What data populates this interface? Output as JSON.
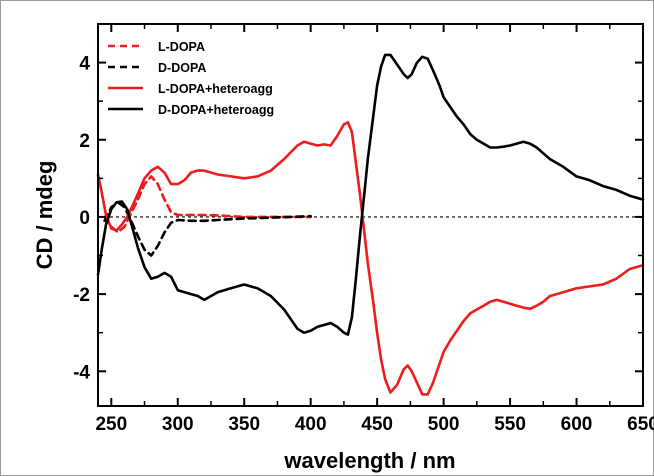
{
  "chart_data": {
    "type": "line",
    "xlabel": "wavelength / nm",
    "ylabel": "CD / mdeg",
    "xlim": [
      240,
      650
    ],
    "ylim": [
      -4.9,
      5.0
    ],
    "xticks": [
      250,
      300,
      350,
      400,
      450,
      500,
      550,
      600,
      650
    ],
    "yticks": [
      -4,
      -2,
      0,
      2,
      4
    ],
    "legend_position": "top-left",
    "zero_reference_line": true,
    "series": [
      {
        "name": "L-DOPA",
        "color": "#ee1c1c",
        "dashed": true,
        "points": [
          [
            245,
            0.0
          ],
          [
            250,
            -0.25
          ],
          [
            255,
            -0.4
          ],
          [
            260,
            -0.25
          ],
          [
            265,
            0.1
          ],
          [
            270,
            0.45
          ],
          [
            275,
            0.85
          ],
          [
            280,
            1.05
          ],
          [
            285,
            0.85
          ],
          [
            290,
            0.45
          ],
          [
            295,
            0.12
          ],
          [
            300,
            0.05
          ],
          [
            310,
            0.05
          ],
          [
            320,
            0.05
          ],
          [
            330,
            0.04
          ],
          [
            340,
            0.02
          ],
          [
            350,
            0.0
          ],
          [
            370,
            0.0
          ],
          [
            400,
            0.0
          ]
        ]
      },
      {
        "name": "D-DOPA",
        "color": "#000000",
        "dashed": true,
        "points": [
          [
            245,
            -0.1
          ],
          [
            250,
            0.25
          ],
          [
            255,
            0.38
          ],
          [
            260,
            0.25
          ],
          [
            265,
            -0.1
          ],
          [
            270,
            -0.5
          ],
          [
            275,
            -0.85
          ],
          [
            280,
            -1.0
          ],
          [
            285,
            -0.75
          ],
          [
            290,
            -0.4
          ],
          [
            295,
            -0.15
          ],
          [
            300,
            -0.08
          ],
          [
            310,
            -0.1
          ],
          [
            320,
            -0.1
          ],
          [
            330,
            -0.08
          ],
          [
            340,
            -0.06
          ],
          [
            350,
            -0.04
          ],
          [
            370,
            -0.02
          ],
          [
            385,
            0.0
          ],
          [
            400,
            0.02
          ]
        ]
      },
      {
        "name": "L-DOPA+heteroagg",
        "color": "#ee1c1c",
        "dashed": false,
        "points": [
          [
            240,
            1.1
          ],
          [
            243,
            0.6
          ],
          [
            246,
            0.05
          ],
          [
            250,
            -0.3
          ],
          [
            254,
            -0.35
          ],
          [
            258,
            -0.2
          ],
          [
            262,
            0.0
          ],
          [
            266,
            0.3
          ],
          [
            270,
            0.6
          ],
          [
            275,
            1.0
          ],
          [
            280,
            1.2
          ],
          [
            285,
            1.3
          ],
          [
            290,
            1.15
          ],
          [
            295,
            0.85
          ],
          [
            300,
            0.85
          ],
          [
            305,
            0.95
          ],
          [
            310,
            1.15
          ],
          [
            315,
            1.2
          ],
          [
            320,
            1.2
          ],
          [
            330,
            1.1
          ],
          [
            340,
            1.05
          ],
          [
            350,
            1.0
          ],
          [
            360,
            1.05
          ],
          [
            370,
            1.2
          ],
          [
            380,
            1.5
          ],
          [
            390,
            1.85
          ],
          [
            395,
            1.95
          ],
          [
            400,
            1.9
          ],
          [
            405,
            1.85
          ],
          [
            410,
            1.88
          ],
          [
            415,
            1.85
          ],
          [
            420,
            2.1
          ],
          [
            425,
            2.4
          ],
          [
            428,
            2.45
          ],
          [
            431,
            2.2
          ],
          [
            434,
            1.4
          ],
          [
            437,
            0.6
          ],
          [
            440,
            -0.3
          ],
          [
            443,
            -1.2
          ],
          [
            447,
            -2.2
          ],
          [
            450,
            -3.0
          ],
          [
            453,
            -3.7
          ],
          [
            456,
            -4.2
          ],
          [
            460,
            -4.55
          ],
          [
            465,
            -4.35
          ],
          [
            470,
            -3.95
          ],
          [
            473,
            -3.85
          ],
          [
            476,
            -4.0
          ],
          [
            480,
            -4.3
          ],
          [
            484,
            -4.6
          ],
          [
            488,
            -4.6
          ],
          [
            492,
            -4.3
          ],
          [
            497,
            -3.8
          ],
          [
            500,
            -3.5
          ],
          [
            505,
            -3.2
          ],
          [
            510,
            -2.95
          ],
          [
            515,
            -2.7
          ],
          [
            520,
            -2.5
          ],
          [
            525,
            -2.4
          ],
          [
            530,
            -2.3
          ],
          [
            535,
            -2.2
          ],
          [
            540,
            -2.15
          ],
          [
            545,
            -2.2
          ],
          [
            550,
            -2.25
          ],
          [
            555,
            -2.3
          ],
          [
            560,
            -2.35
          ],
          [
            565,
            -2.38
          ],
          [
            570,
            -2.3
          ],
          [
            575,
            -2.2
          ],
          [
            580,
            -2.05
          ],
          [
            590,
            -1.95
          ],
          [
            600,
            -1.85
          ],
          [
            610,
            -1.8
          ],
          [
            620,
            -1.75
          ],
          [
            630,
            -1.6
          ],
          [
            640,
            -1.35
          ],
          [
            650,
            -1.25
          ]
        ]
      },
      {
        "name": "D-DOPA+heteroagg",
        "color": "#000000",
        "dashed": false,
        "points": [
          [
            240,
            -1.5
          ],
          [
            243,
            -0.8
          ],
          [
            246,
            -0.2
          ],
          [
            250,
            0.2
          ],
          [
            254,
            0.38
          ],
          [
            258,
            0.4
          ],
          [
            262,
            0.2
          ],
          [
            266,
            -0.3
          ],
          [
            270,
            -0.8
          ],
          [
            275,
            -1.3
          ],
          [
            280,
            -1.6
          ],
          [
            285,
            -1.55
          ],
          [
            290,
            -1.45
          ],
          [
            295,
            -1.55
          ],
          [
            300,
            -1.9
          ],
          [
            310,
            -2.0
          ],
          [
            315,
            -2.05
          ],
          [
            320,
            -2.15
          ],
          [
            330,
            -1.95
          ],
          [
            340,
            -1.85
          ],
          [
            350,
            -1.75
          ],
          [
            360,
            -1.85
          ],
          [
            370,
            -2.05
          ],
          [
            380,
            -2.4
          ],
          [
            390,
            -2.9
          ],
          [
            395,
            -3.0
          ],
          [
            400,
            -2.95
          ],
          [
            405,
            -2.85
          ],
          [
            410,
            -2.8
          ],
          [
            415,
            -2.75
          ],
          [
            420,
            -2.85
          ],
          [
            425,
            -3.0
          ],
          [
            428,
            -3.05
          ],
          [
            431,
            -2.6
          ],
          [
            434,
            -1.6
          ],
          [
            437,
            -0.5
          ],
          [
            440,
            0.5
          ],
          [
            443,
            1.5
          ],
          [
            447,
            2.6
          ],
          [
            450,
            3.4
          ],
          [
            453,
            3.9
          ],
          [
            456,
            4.2
          ],
          [
            460,
            4.2
          ],
          [
            465,
            3.95
          ],
          [
            470,
            3.7
          ],
          [
            473,
            3.6
          ],
          [
            476,
            3.7
          ],
          [
            480,
            4.0
          ],
          [
            484,
            4.15
          ],
          [
            488,
            4.1
          ],
          [
            492,
            3.8
          ],
          [
            497,
            3.4
          ],
          [
            500,
            3.1
          ],
          [
            505,
            2.85
          ],
          [
            510,
            2.6
          ],
          [
            515,
            2.4
          ],
          [
            520,
            2.15
          ],
          [
            525,
            2.0
          ],
          [
            530,
            1.9
          ],
          [
            535,
            1.8
          ],
          [
            540,
            1.8
          ],
          [
            545,
            1.82
          ],
          [
            550,
            1.85
          ],
          [
            555,
            1.9
          ],
          [
            560,
            1.95
          ],
          [
            565,
            1.9
          ],
          [
            570,
            1.8
          ],
          [
            575,
            1.65
          ],
          [
            580,
            1.5
          ],
          [
            590,
            1.3
          ],
          [
            600,
            1.05
          ],
          [
            610,
            0.95
          ],
          [
            620,
            0.8
          ],
          [
            630,
            0.7
          ],
          [
            640,
            0.55
          ],
          [
            650,
            0.45
          ]
        ]
      }
    ]
  }
}
